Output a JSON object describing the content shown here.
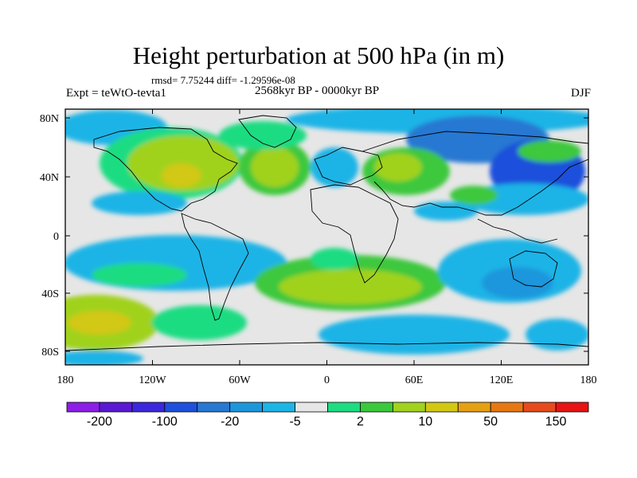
{
  "title": "Height perturbation at 500 hPa (in m)",
  "stats": "rmsd= 7.75244 diff= -1.29596e-08",
  "left_label": "Expt = teWtO-tevta1",
  "center_label": "2568kyr BP - 0000kyr BP",
  "right_label": "DJF",
  "lat_ticks": [
    "80N",
    "40N",
    "0",
    "40S",
    "80S"
  ],
  "lon_ticks": [
    "180",
    "120W",
    "60W",
    "0",
    "60E",
    "120E",
    "180"
  ],
  "colorbar": {
    "colors": [
      "#8c1ee6",
      "#5a19d2",
      "#3c28dc",
      "#1e50dc",
      "#2878d2",
      "#1e96dc",
      "#1eb4e6",
      "#e6e6e6",
      "#1edc82",
      "#3cc83c",
      "#a0d21e",
      "#d2c814",
      "#e6a014",
      "#e67814",
      "#e64b1e",
      "#e61414"
    ],
    "labels": [
      "-200",
      "-100",
      "-20",
      "-5",
      "2",
      "10",
      "50",
      "150"
    ]
  },
  "colors": {
    "neutral": "#e6e6e6",
    "coast": "#000000"
  }
}
